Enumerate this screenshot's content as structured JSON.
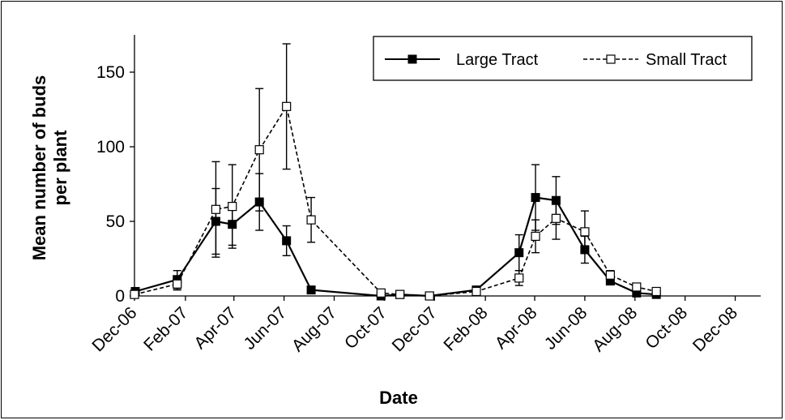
{
  "chart_data": {
    "type": "line",
    "title": "",
    "xlabel": "Date",
    "ylabel_lines": [
      "Mean number of buds",
      "per plant"
    ],
    "ylim": [
      0,
      175
    ],
    "yticks": [
      0,
      50,
      100,
      150
    ],
    "xlim": [
      "2006-12-01",
      "2009-01-01"
    ],
    "x_tick_labels": [
      "Dec-06",
      "Feb-07",
      "Apr-07",
      "Jun-07",
      "Aug-07",
      "Oct-07",
      "Dec-07",
      "Feb-08",
      "Apr-08",
      "Jun-08",
      "Aug-08",
      "Oct-08",
      "Dec-08"
    ],
    "x_tick_dates": [
      "2006-12-01",
      "2007-02-01",
      "2007-04-01",
      "2007-06-01",
      "2007-08-01",
      "2007-10-01",
      "2007-12-01",
      "2008-02-01",
      "2008-04-01",
      "2008-06-01",
      "2008-08-01",
      "2008-10-01",
      "2008-12-01"
    ],
    "grid": false,
    "legend_position": "top-right",
    "series": [
      {
        "name": "Large Tract",
        "style": "solid",
        "marker": "filled-square",
        "color": "#000000",
        "points": [
          {
            "x": "2006-12-02",
            "y": 3,
            "err": 0
          },
          {
            "x": "2007-01-22",
            "y": 11,
            "err": 6
          },
          {
            "x": "2007-03-10",
            "y": 50,
            "err": 22
          },
          {
            "x": "2007-03-30",
            "y": 48,
            "err": 14
          },
          {
            "x": "2007-05-02",
            "y": 63,
            "err": 19
          },
          {
            "x": "2007-06-04",
            "y": 37,
            "err": 10
          },
          {
            "x": "2007-07-04",
            "y": 4,
            "err": 0
          },
          {
            "x": "2007-09-27",
            "y": 0,
            "err": 0
          },
          {
            "x": "2007-10-20",
            "y": 1,
            "err": 0
          },
          {
            "x": "2007-11-25",
            "y": 0,
            "err": 0
          },
          {
            "x": "2008-01-21",
            "y": 4,
            "err": 0
          },
          {
            "x": "2008-03-13",
            "y": 29,
            "err": 12
          },
          {
            "x": "2008-04-02",
            "y": 66,
            "err": 22
          },
          {
            "x": "2008-04-27",
            "y": 64,
            "err": 16
          },
          {
            "x": "2008-06-01",
            "y": 31,
            "err": 9
          },
          {
            "x": "2008-07-02",
            "y": 10,
            "err": 2
          },
          {
            "x": "2008-08-03",
            "y": 2,
            "err": 0
          },
          {
            "x": "2008-08-27",
            "y": 1,
            "err": 0
          }
        ]
      },
      {
        "name": "Small Tract",
        "style": "dashed",
        "marker": "open-square",
        "color": "#000000",
        "points": [
          {
            "x": "2006-12-01",
            "y": 1,
            "err": 0
          },
          {
            "x": "2007-01-22",
            "y": 8,
            "err": 4
          },
          {
            "x": "2007-03-10",
            "y": 58,
            "err": 32
          },
          {
            "x": "2007-03-30",
            "y": 60,
            "err": 28
          },
          {
            "x": "2007-05-02",
            "y": 98,
            "err": 41
          },
          {
            "x": "2007-06-04",
            "y": 127,
            "err": 42
          },
          {
            "x": "2007-07-04",
            "y": 51,
            "err": 15
          },
          {
            "x": "2007-09-27",
            "y": 2,
            "err": 0
          },
          {
            "x": "2007-10-20",
            "y": 1,
            "err": 0
          },
          {
            "x": "2007-11-25",
            "y": 0,
            "err": 0
          },
          {
            "x": "2008-01-21",
            "y": 3,
            "err": 0
          },
          {
            "x": "2008-03-13",
            "y": 12,
            "err": 5
          },
          {
            "x": "2008-04-02",
            "y": 40,
            "err": 11
          },
          {
            "x": "2008-04-27",
            "y": 52,
            "err": 14
          },
          {
            "x": "2008-06-01",
            "y": 43,
            "err": 14
          },
          {
            "x": "2008-07-02",
            "y": 14,
            "err": 3
          },
          {
            "x": "2008-08-03",
            "y": 6,
            "err": 0
          },
          {
            "x": "2008-08-27",
            "y": 3,
            "err": 0
          }
        ]
      }
    ]
  }
}
